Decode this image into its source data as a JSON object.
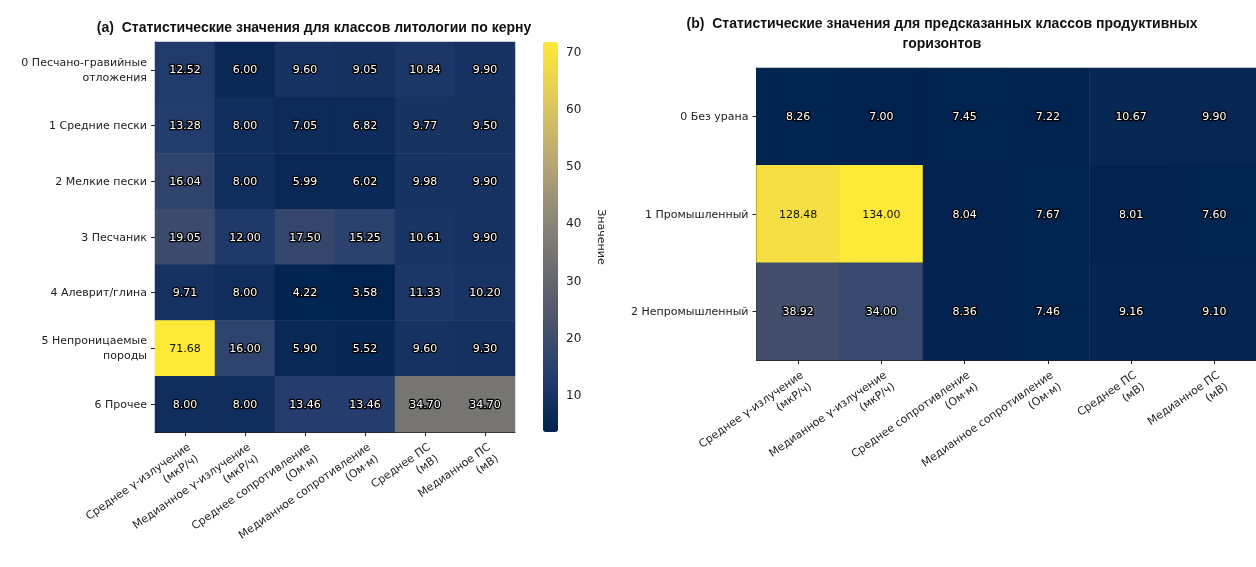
{
  "chart_data": [
    {
      "type": "heatmap",
      "title": "(a)  Статистические значения для классов литологии по керну",
      "categories": [
        "Среднее γ-излучение\n(мкР/ч)",
        "Медианное γ-излучение\n(мкР/ч)",
        "Среднее сопротивление\n(Ом·м)",
        "Медианное сопротивление\n(Ом·м)",
        "Среднее ПС\n(мВ)",
        "Медианное ПС\n(мВ)"
      ],
      "y_categories": [
        "0 Песчано-гравийные\nотложения",
        "1 Средние пески",
        "2 Мелкие пески",
        "3 Песчаник",
        "4 Алеврит/глина",
        "5 Непроницаемые\nпороды",
        "6 Прочее"
      ],
      "cells": [
        [
          12.52,
          6.0,
          9.6,
          9.05,
          10.84,
          9.9
        ],
        [
          13.28,
          8.0,
          7.05,
          6.82,
          9.77,
          9.5
        ],
        [
          16.04,
          8.0,
          5.99,
          6.02,
          9.98,
          9.9
        ],
        [
          19.05,
          12.0,
          17.5,
          15.25,
          10.61,
          9.9
        ],
        [
          9.71,
          8.0,
          4.22,
          3.58,
          11.33,
          10.2
        ],
        [
          71.68,
          16.0,
          5.9,
          5.52,
          9.6,
          9.3
        ],
        [
          8.0,
          8.0,
          13.46,
          13.46,
          34.7,
          34.7
        ]
      ],
      "cell_labels": [
        [
          "12.52",
          "6.00",
          "9.60",
          "9.05",
          "10.84",
          "9.90"
        ],
        [
          "13.28",
          "8.00",
          "7.05",
          "6.82",
          "9.77",
          "9.50"
        ],
        [
          "16.04",
          "8.00",
          "5.99",
          "6.02",
          "9.98",
          "9.90"
        ],
        [
          "19.05",
          "12.00",
          "17.50",
          "15.25",
          "10.61",
          "9.90"
        ],
        [
          "9.71",
          "8.00",
          "4.22",
          "3.58",
          "11.33",
          "10.20"
        ],
        [
          "71.68",
          "16.00",
          "5.90",
          "5.52",
          "9.60",
          "9.30"
        ],
        [
          "8.00",
          "8.00",
          "13.46",
          "13.46",
          "34.70",
          "34.70"
        ]
      ],
      "clabel": "Значение",
      "clim": [
        3.58,
        71.68
      ],
      "cticks": [
        10,
        20,
        30,
        40,
        50,
        60,
        70
      ]
    },
    {
      "type": "heatmap",
      "title": "(b)  Статистические значения для предсказанных классов продуктивных\nгоризонтов",
      "categories": [
        "Среднее γ-излучение\n(мкР/ч)",
        "Медианное γ-излучение\n(мкР/ч)",
        "Среднее сопротивление\n(Ом·м)",
        "Медианное сопротивление\n(Ом·м)",
        "Среднее ПС\n(мВ)",
        "Медианное ПС\n(мВ)"
      ],
      "y_categories": [
        "0 Без урана",
        "1 Промышленный",
        "2 Непромышленный"
      ],
      "cells": [
        [
          8.26,
          7.0,
          7.45,
          7.22,
          10.67,
          9.9
        ],
        [
          128.48,
          134.0,
          8.04,
          7.67,
          8.01,
          7.6
        ],
        [
          38.92,
          34.0,
          8.36,
          7.46,
          9.16,
          9.1
        ]
      ],
      "cell_labels": [
        [
          "8.26",
          "7.00",
          "7.45",
          "7.22",
          "10.67",
          "9.90"
        ],
        [
          "128.48",
          "134.00",
          "8.04",
          "7.67",
          "8.01",
          "7.60"
        ],
        [
          "38.92",
          "34.00",
          "8.36",
          "7.46",
          "9.16",
          "9.10"
        ]
      ]
    }
  ]
}
